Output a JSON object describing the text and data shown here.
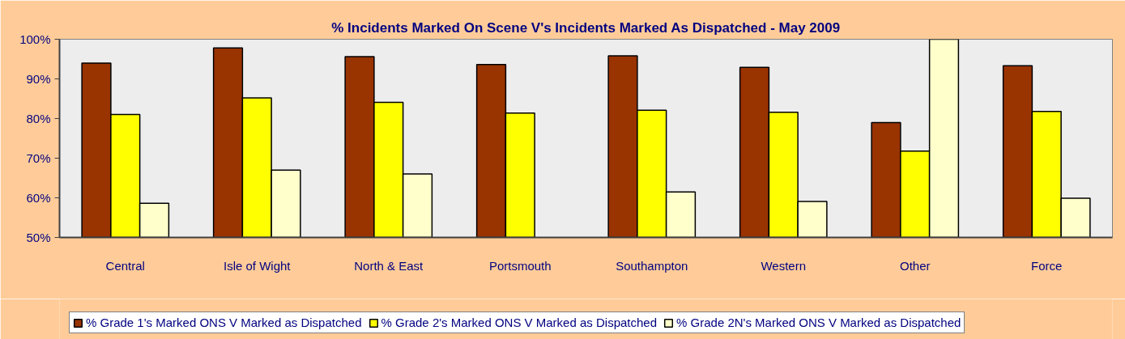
{
  "chart_data": {
    "type": "bar",
    "title": "% Incidents Marked On Scene V's Incidents Marked As Dispatched - May 2009",
    "categories": [
      "Central",
      "Isle of Wight",
      "North & East",
      "Portsmouth",
      "Southampton",
      "Western",
      "Other",
      "Force"
    ],
    "series": [
      {
        "name": "% Grade 1's Marked ONS V Marked as Dispatched",
        "color": "#993300",
        "values": [
          94.0,
          97.8,
          95.6,
          93.6,
          95.8,
          92.9,
          79.0,
          93.3
        ]
      },
      {
        "name": "% Grade 2's Marked ONS V Marked as Dispatched",
        "color": "#ffff00",
        "values": [
          81.0,
          85.2,
          84.1,
          81.4,
          82.1,
          81.6,
          71.8,
          81.8
        ]
      },
      {
        "name": "% Grade 2N's Marked ONS V Marked as Dispatched",
        "color": "#ffffcc",
        "values": [
          58.6,
          67.0,
          66.0,
          null,
          61.5,
          59.1,
          100,
          59.9
        ]
      }
    ],
    "ylim": [
      50,
      100
    ],
    "yticks": [
      {
        "value": 50,
        "label": "50%"
      },
      {
        "value": 60,
        "label": "60%"
      },
      {
        "value": 70,
        "label": "70%"
      },
      {
        "value": 80,
        "label": "80%"
      },
      {
        "value": 90,
        "label": "90%"
      },
      {
        "value": 100,
        "label": "100%"
      }
    ],
    "legend": "bottom left"
  }
}
